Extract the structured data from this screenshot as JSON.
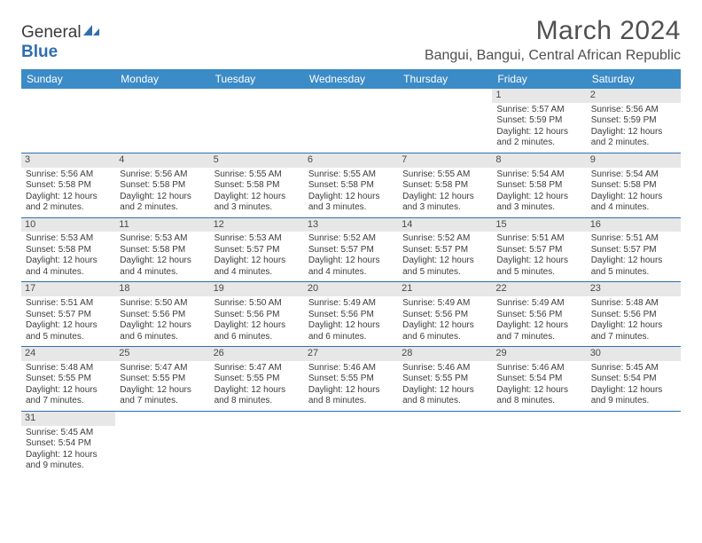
{
  "brand": {
    "part1": "General",
    "part2": "Blue"
  },
  "title": "March 2024",
  "location": "Bangui, Bangui, Central African Republic",
  "colors": {
    "header_bg": "#3b8bc7",
    "header_text": "#ffffff",
    "row_divider": "#2f6fb0",
    "daynum_bg": "#e7e7e7",
    "text": "#3c3c3c",
    "title_text": "#505050",
    "logo_blue": "#2f6fb0"
  },
  "day_headers": [
    "Sunday",
    "Monday",
    "Tuesday",
    "Wednesday",
    "Thursday",
    "Friday",
    "Saturday"
  ],
  "weeks": [
    [
      {
        "day": "",
        "sunrise": "",
        "sunset": "",
        "daylight": ""
      },
      {
        "day": "",
        "sunrise": "",
        "sunset": "",
        "daylight": ""
      },
      {
        "day": "",
        "sunrise": "",
        "sunset": "",
        "daylight": ""
      },
      {
        "day": "",
        "sunrise": "",
        "sunset": "",
        "daylight": ""
      },
      {
        "day": "",
        "sunrise": "",
        "sunset": "",
        "daylight": ""
      },
      {
        "day": "1",
        "sunrise": "Sunrise: 5:57 AM",
        "sunset": "Sunset: 5:59 PM",
        "daylight": "Daylight: 12 hours and 2 minutes."
      },
      {
        "day": "2",
        "sunrise": "Sunrise: 5:56 AM",
        "sunset": "Sunset: 5:59 PM",
        "daylight": "Daylight: 12 hours and 2 minutes."
      }
    ],
    [
      {
        "day": "3",
        "sunrise": "Sunrise: 5:56 AM",
        "sunset": "Sunset: 5:58 PM",
        "daylight": "Daylight: 12 hours and 2 minutes."
      },
      {
        "day": "4",
        "sunrise": "Sunrise: 5:56 AM",
        "sunset": "Sunset: 5:58 PM",
        "daylight": "Daylight: 12 hours and 2 minutes."
      },
      {
        "day": "5",
        "sunrise": "Sunrise: 5:55 AM",
        "sunset": "Sunset: 5:58 PM",
        "daylight": "Daylight: 12 hours and 3 minutes."
      },
      {
        "day": "6",
        "sunrise": "Sunrise: 5:55 AM",
        "sunset": "Sunset: 5:58 PM",
        "daylight": "Daylight: 12 hours and 3 minutes."
      },
      {
        "day": "7",
        "sunrise": "Sunrise: 5:55 AM",
        "sunset": "Sunset: 5:58 PM",
        "daylight": "Daylight: 12 hours and 3 minutes."
      },
      {
        "day": "8",
        "sunrise": "Sunrise: 5:54 AM",
        "sunset": "Sunset: 5:58 PM",
        "daylight": "Daylight: 12 hours and 3 minutes."
      },
      {
        "day": "9",
        "sunrise": "Sunrise: 5:54 AM",
        "sunset": "Sunset: 5:58 PM",
        "daylight": "Daylight: 12 hours and 4 minutes."
      }
    ],
    [
      {
        "day": "10",
        "sunrise": "Sunrise: 5:53 AM",
        "sunset": "Sunset: 5:58 PM",
        "daylight": "Daylight: 12 hours and 4 minutes."
      },
      {
        "day": "11",
        "sunrise": "Sunrise: 5:53 AM",
        "sunset": "Sunset: 5:58 PM",
        "daylight": "Daylight: 12 hours and 4 minutes."
      },
      {
        "day": "12",
        "sunrise": "Sunrise: 5:53 AM",
        "sunset": "Sunset: 5:57 PM",
        "daylight": "Daylight: 12 hours and 4 minutes."
      },
      {
        "day": "13",
        "sunrise": "Sunrise: 5:52 AM",
        "sunset": "Sunset: 5:57 PM",
        "daylight": "Daylight: 12 hours and 4 minutes."
      },
      {
        "day": "14",
        "sunrise": "Sunrise: 5:52 AM",
        "sunset": "Sunset: 5:57 PM",
        "daylight": "Daylight: 12 hours and 5 minutes."
      },
      {
        "day": "15",
        "sunrise": "Sunrise: 5:51 AM",
        "sunset": "Sunset: 5:57 PM",
        "daylight": "Daylight: 12 hours and 5 minutes."
      },
      {
        "day": "16",
        "sunrise": "Sunrise: 5:51 AM",
        "sunset": "Sunset: 5:57 PM",
        "daylight": "Daylight: 12 hours and 5 minutes."
      }
    ],
    [
      {
        "day": "17",
        "sunrise": "Sunrise: 5:51 AM",
        "sunset": "Sunset: 5:57 PM",
        "daylight": "Daylight: 12 hours and 5 minutes."
      },
      {
        "day": "18",
        "sunrise": "Sunrise: 5:50 AM",
        "sunset": "Sunset: 5:56 PM",
        "daylight": "Daylight: 12 hours and 6 minutes."
      },
      {
        "day": "19",
        "sunrise": "Sunrise: 5:50 AM",
        "sunset": "Sunset: 5:56 PM",
        "daylight": "Daylight: 12 hours and 6 minutes."
      },
      {
        "day": "20",
        "sunrise": "Sunrise: 5:49 AM",
        "sunset": "Sunset: 5:56 PM",
        "daylight": "Daylight: 12 hours and 6 minutes."
      },
      {
        "day": "21",
        "sunrise": "Sunrise: 5:49 AM",
        "sunset": "Sunset: 5:56 PM",
        "daylight": "Daylight: 12 hours and 6 minutes."
      },
      {
        "day": "22",
        "sunrise": "Sunrise: 5:49 AM",
        "sunset": "Sunset: 5:56 PM",
        "daylight": "Daylight: 12 hours and 7 minutes."
      },
      {
        "day": "23",
        "sunrise": "Sunrise: 5:48 AM",
        "sunset": "Sunset: 5:56 PM",
        "daylight": "Daylight: 12 hours and 7 minutes."
      }
    ],
    [
      {
        "day": "24",
        "sunrise": "Sunrise: 5:48 AM",
        "sunset": "Sunset: 5:55 PM",
        "daylight": "Daylight: 12 hours and 7 minutes."
      },
      {
        "day": "25",
        "sunrise": "Sunrise: 5:47 AM",
        "sunset": "Sunset: 5:55 PM",
        "daylight": "Daylight: 12 hours and 7 minutes."
      },
      {
        "day": "26",
        "sunrise": "Sunrise: 5:47 AM",
        "sunset": "Sunset: 5:55 PM",
        "daylight": "Daylight: 12 hours and 8 minutes."
      },
      {
        "day": "27",
        "sunrise": "Sunrise: 5:46 AM",
        "sunset": "Sunset: 5:55 PM",
        "daylight": "Daylight: 12 hours and 8 minutes."
      },
      {
        "day": "28",
        "sunrise": "Sunrise: 5:46 AM",
        "sunset": "Sunset: 5:55 PM",
        "daylight": "Daylight: 12 hours and 8 minutes."
      },
      {
        "day": "29",
        "sunrise": "Sunrise: 5:46 AM",
        "sunset": "Sunset: 5:54 PM",
        "daylight": "Daylight: 12 hours and 8 minutes."
      },
      {
        "day": "30",
        "sunrise": "Sunrise: 5:45 AM",
        "sunset": "Sunset: 5:54 PM",
        "daylight": "Daylight: 12 hours and 9 minutes."
      }
    ],
    [
      {
        "day": "31",
        "sunrise": "Sunrise: 5:45 AM",
        "sunset": "Sunset: 5:54 PM",
        "daylight": "Daylight: 12 hours and 9 minutes."
      },
      {
        "day": "",
        "sunrise": "",
        "sunset": "",
        "daylight": ""
      },
      {
        "day": "",
        "sunrise": "",
        "sunset": "",
        "daylight": ""
      },
      {
        "day": "",
        "sunrise": "",
        "sunset": "",
        "daylight": ""
      },
      {
        "day": "",
        "sunrise": "",
        "sunset": "",
        "daylight": ""
      },
      {
        "day": "",
        "sunrise": "",
        "sunset": "",
        "daylight": ""
      },
      {
        "day": "",
        "sunrise": "",
        "sunset": "",
        "daylight": ""
      }
    ]
  ]
}
